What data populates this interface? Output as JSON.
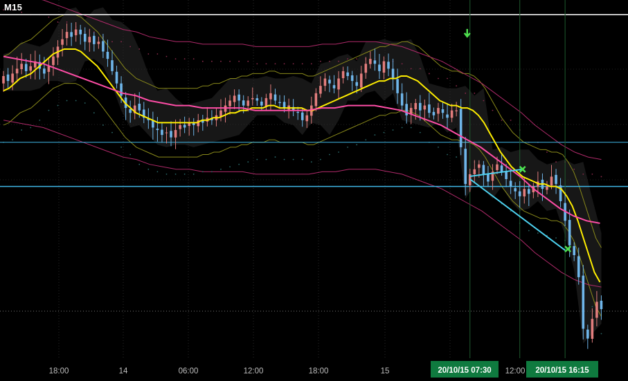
{
  "header": {
    "timeframe": "M15"
  },
  "colors": {
    "background": "#000000",
    "bull_candle": "#e27d7d",
    "bear_candle": "#6fb6ea",
    "sma_fast": "#ffee00",
    "sma_slow": "#ff4da6",
    "bands_inner": "#8a8a1a",
    "bands_outer": "#b02a6a",
    "cloud": "#2a2a2a",
    "hline_white": "#ffffff",
    "hline_blue": "#3fb6e6",
    "channel": "#4dd2f0",
    "time_badge_bg": "#0f7a3f",
    "signal_green": "#4ee04e"
  },
  "chart_data": {
    "type": "candlestick",
    "xaxis": {
      "tick_labels": [
        "18:00",
        "14",
        "06:00",
        "12:00",
        "18:00",
        "15",
        "12:00"
      ],
      "badges": [
        "20/10/15  07:30",
        "20/10/15  16:15"
      ]
    },
    "closes": [
      137.5,
      137.3,
      137.6,
      137.8,
      138.0,
      137.7,
      137.9,
      138.1,
      137.8,
      137.6,
      137.9,
      138.3,
      138.7,
      139.0,
      139.3,
      139.1,
      139.4,
      139.2,
      138.9,
      139.1,
      138.8,
      138.9,
      138.5,
      138.2,
      137.7,
      137.2,
      136.7,
      136.2,
      136.0,
      136.3,
      136.1,
      135.8,
      135.7,
      135.4,
      135.3,
      135.1,
      135.2,
      135.0,
      135.3,
      135.5,
      135.4,
      135.6,
      135.5,
      135.7,
      135.6,
      135.8,
      135.7,
      135.9,
      136.1,
      136.3,
      136.5,
      136.7,
      136.5,
      136.3,
      136.5,
      136.6,
      136.5,
      136.3,
      136.6,
      136.8,
      136.5,
      136.4,
      136.2,
      136.3,
      136.1,
      136.0,
      135.7,
      135.9,
      136.3,
      136.8,
      137.1,
      137.4,
      137.2,
      137.0,
      137.4,
      137.7,
      137.5,
      137.3,
      137.1,
      137.6,
      138.0,
      138.2,
      138.0,
      137.7,
      138.1,
      137.8,
      137.4,
      136.8,
      136.3,
      135.9,
      136.2,
      136.4,
      136.1,
      136.3,
      136.0,
      135.9,
      136.2,
      136.0,
      135.8,
      136.1,
      136.1,
      134.6,
      133.1,
      133.5,
      133.7,
      133.9,
      133.5,
      133.2,
      133.6,
      133.9,
      133.6,
      133.3,
      133.0,
      132.8,
      132.6,
      132.9,
      132.7,
      133.0,
      133.2,
      132.9,
      133.0,
      133.4,
      133.1,
      132.4,
      131.6,
      130.6,
      130.2,
      129.3,
      127.2,
      126.8,
      127.6,
      128.3,
      128.0
    ],
    "sma_fast": [
      136.9,
      137.0,
      137.2,
      137.4,
      137.5,
      137.6,
      137.8,
      138.0,
      138.2,
      138.4,
      138.5,
      138.6,
      138.6,
      138.6,
      138.5,
      138.3,
      138.1,
      137.9,
      137.6,
      137.3,
      137.0,
      136.7,
      136.4,
      136.2,
      136.0,
      135.9,
      135.8,
      135.7,
      135.6,
      135.6,
      135.6,
      135.6,
      135.6,
      135.6,
      135.6,
      135.6,
      135.7,
      135.7,
      135.8,
      135.8,
      135.9,
      136.0,
      136.0,
      136.1,
      136.1,
      136.2,
      136.2,
      136.2,
      136.3,
      136.3,
      136.2,
      136.2,
      136.2,
      136.2,
      136.2,
      136.1,
      136.1,
      136.2,
      136.3,
      136.4,
      136.5,
      136.6,
      136.7,
      136.8,
      136.9,
      137.0,
      137.1,
      137.2,
      137.3,
      137.3,
      137.4,
      137.4,
      137.5,
      137.5,
      137.4,
      137.3,
      137.1,
      136.9,
      136.7,
      136.5,
      136.4,
      136.3,
      136.3,
      136.2,
      136.2,
      136.1,
      135.9,
      135.6,
      135.2,
      134.8,
      134.4,
      134.1,
      133.8,
      133.6,
      133.4,
      133.3,
      133.2,
      133.1,
      133.1,
      133.0,
      133.0,
      132.9,
      132.6,
      132.2,
      131.6,
      130.9,
      130.2,
      129.5,
      129.1
    ],
    "sma_slow": [
      138.3,
      138.2,
      138.1,
      138.0,
      137.8,
      137.6,
      137.4,
      137.2,
      137.0,
      136.8,
      136.7,
      136.5,
      136.4,
      136.3,
      136.3,
      136.2,
      136.2,
      136.2,
      136.2,
      136.1,
      136.1,
      136.1,
      136.1,
      136.1,
      136.2,
      136.2,
      136.3,
      136.3,
      136.3,
      136.2,
      136.1,
      135.9,
      135.7,
      135.5,
      135.2,
      134.9,
      134.6,
      134.2,
      133.8,
      133.4,
      132.9,
      132.5,
      132.1,
      131.8,
      131.6,
      131.5
    ],
    "ref_levels": [
      140.0,
      134.8,
      133.0
    ]
  }
}
